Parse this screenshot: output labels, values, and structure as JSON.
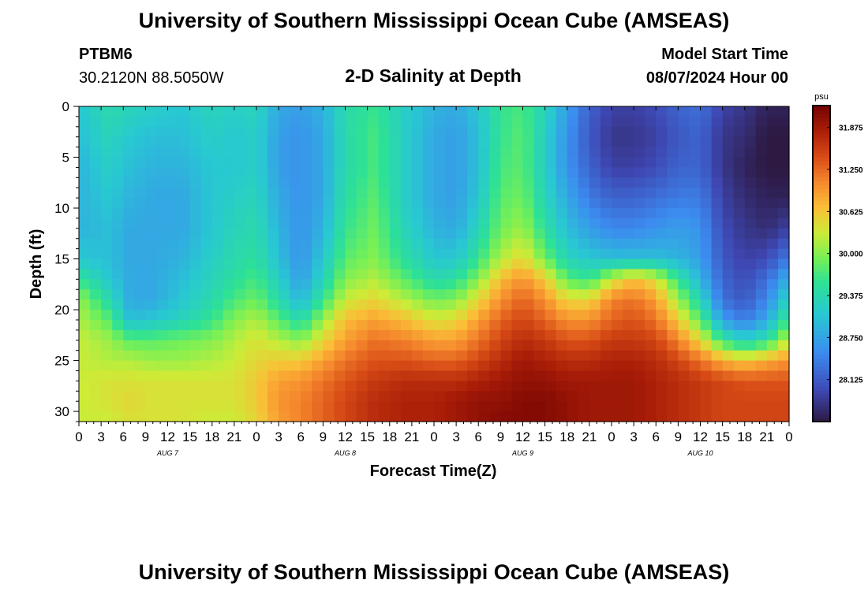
{
  "titles": {
    "main": "University of Southern Mississippi Ocean Cube (AMSEAS)",
    "footer": "University of Southern Mississippi Ocean Cube (AMSEAS)"
  },
  "station": {
    "id": "PTBM6",
    "location": "30.2120N  88.5050W"
  },
  "model": {
    "start_label": "Model Start Time",
    "start_value": "08/07/2024 Hour 00"
  },
  "chart_data": {
    "type": "heatmap",
    "title": "2-D Salinity at Depth",
    "xlabel": "Forecast Time(Z)",
    "ylabel": "Depth (ft)",
    "xlim": [
      0,
      96
    ],
    "ylim": [
      0,
      31
    ],
    "y_ticks": [
      0,
      5,
      10,
      15,
      20,
      25,
      30
    ],
    "y_tick_labels": [
      "0",
      "5",
      "10",
      "15",
      "20",
      "25",
      "30"
    ],
    "x_ticks": [
      0,
      3,
      6,
      9,
      12,
      15,
      18,
      21,
      24,
      27,
      30,
      33,
      36,
      39,
      42,
      45,
      48,
      51,
      54,
      57,
      60,
      63,
      66,
      69,
      72,
      75,
      78,
      81,
      84,
      87,
      90,
      93,
      96
    ],
    "x_tick_labels": [
      "0",
      "3",
      "6",
      "9",
      "12",
      "15",
      "18",
      "21",
      "0",
      "3",
      "6",
      "9",
      "12",
      "15",
      "18",
      "21",
      "0",
      "3",
      "6",
      "9",
      "12",
      "15",
      "18",
      "21",
      "0",
      "3",
      "6",
      "9",
      "12",
      "15",
      "18",
      "21",
      "0"
    ],
    "day_labels": [
      {
        "x": 12,
        "label": "AUG 7"
      },
      {
        "x": 36,
        "label": "AUG 8"
      },
      {
        "x": 60,
        "label": "AUG 9"
      },
      {
        "x": 84,
        "label": "AUG 10"
      }
    ],
    "colorbar": {
      "unit": "psu",
      "min": 27.5,
      "max": 32.2,
      "ticks": [
        28.125,
        28.75,
        29.375,
        30.0,
        30.625,
        31.25,
        31.875
      ],
      "tick_labels": [
        "28.125",
        "28.750",
        "29.375",
        "30.000",
        "30.625",
        "31.250",
        "31.875"
      ]
    },
    "depth_levels_ft": [
      0,
      3,
      6,
      9,
      12,
      15,
      17,
      19,
      21,
      23,
      25,
      27,
      29,
      31
    ],
    "time_hours": [
      0,
      4,
      7,
      10,
      14,
      18,
      21,
      24,
      27,
      30,
      33,
      36,
      40,
      44,
      48,
      51,
      54,
      57,
      60,
      63,
      66,
      69,
      72,
      75,
      78,
      81,
      84,
      87,
      90,
      93,
      96
    ],
    "salinity_psu": [
      [
        29.1,
        29.4,
        29.3,
        29.2,
        29.1,
        29.3,
        29.2,
        29.3,
        28.8,
        28.7,
        28.9,
        29.4,
        29.6,
        29.2,
        28.9,
        28.8,
        29.1,
        29.6,
        29.7,
        29.3,
        28.7,
        28.2,
        27.9,
        27.9,
        28.0,
        28.2,
        28.3,
        27.9,
        27.8,
        27.6,
        27.6
      ],
      [
        29.0,
        29.3,
        29.1,
        29.0,
        29.0,
        29.2,
        29.1,
        29.2,
        28.7,
        28.6,
        28.8,
        29.4,
        29.7,
        29.2,
        28.8,
        28.7,
        29.0,
        29.6,
        29.8,
        29.2,
        28.6,
        28.1,
        27.8,
        27.8,
        27.9,
        28.1,
        28.2,
        27.8,
        27.7,
        27.5,
        27.5
      ],
      [
        28.9,
        29.2,
        29.0,
        28.9,
        28.9,
        29.1,
        29.1,
        29.2,
        28.7,
        28.6,
        28.8,
        29.4,
        29.7,
        29.2,
        28.8,
        28.7,
        29.0,
        29.7,
        29.8,
        29.2,
        28.6,
        28.2,
        27.9,
        27.9,
        28.0,
        28.2,
        28.2,
        27.8,
        27.6,
        27.5,
        27.5
      ],
      [
        28.9,
        29.1,
        28.9,
        28.8,
        28.8,
        29.1,
        29.2,
        29.3,
        28.8,
        28.6,
        28.8,
        29.5,
        29.8,
        29.2,
        28.8,
        28.7,
        29.1,
        29.8,
        29.9,
        29.3,
        28.8,
        28.4,
        28.2,
        28.2,
        28.3,
        28.4,
        28.4,
        27.9,
        27.7,
        27.6,
        27.6
      ],
      [
        28.9,
        29.0,
        28.8,
        28.8,
        28.8,
        29.1,
        29.3,
        29.4,
        28.9,
        28.6,
        28.9,
        29.6,
        29.9,
        29.3,
        28.9,
        28.8,
        29.3,
        29.9,
        30.1,
        29.5,
        29.0,
        28.7,
        28.5,
        28.5,
        28.6,
        28.7,
        28.6,
        28.0,
        27.8,
        27.7,
        27.9
      ],
      [
        29.1,
        29.0,
        28.8,
        28.8,
        28.9,
        29.2,
        29.4,
        29.5,
        29.0,
        28.6,
        29.1,
        29.8,
        30.0,
        29.5,
        29.1,
        29.1,
        29.6,
        30.2,
        30.5,
        29.9,
        29.3,
        29.1,
        29.0,
        29.0,
        29.0,
        28.9,
        28.7,
        28.1,
        27.9,
        28.0,
        28.4
      ],
      [
        29.6,
        29.1,
        28.8,
        28.8,
        29.0,
        29.3,
        29.5,
        29.7,
        29.2,
        28.7,
        29.3,
        30.0,
        30.2,
        29.8,
        29.4,
        29.5,
        30.0,
        30.7,
        31.0,
        30.6,
        29.8,
        29.6,
        30.3,
        30.7,
        30.4,
        29.6,
        28.9,
        28.2,
        28.0,
        28.3,
        28.9
      ],
      [
        30.1,
        29.4,
        28.8,
        28.8,
        29.1,
        29.4,
        29.7,
        29.9,
        29.4,
        28.9,
        29.6,
        30.3,
        30.5,
        30.2,
        29.9,
        30.0,
        30.5,
        31.0,
        31.3,
        31.0,
        30.5,
        30.5,
        31.1,
        31.2,
        30.9,
        30.1,
        29.3,
        28.3,
        28.1,
        28.5,
        29.3
      ],
      [
        30.2,
        29.8,
        29.0,
        29.1,
        29.3,
        29.6,
        30.0,
        30.2,
        29.8,
        29.4,
        30.1,
        30.7,
        30.9,
        30.7,
        30.4,
        30.5,
        30.9,
        31.3,
        31.5,
        31.3,
        31.0,
        31.0,
        31.3,
        31.4,
        31.2,
        30.6,
        29.8,
        28.7,
        28.4,
        28.8,
        29.7
      ],
      [
        30.3,
        30.1,
        29.8,
        29.8,
        29.9,
        30.0,
        30.2,
        30.4,
        30.2,
        30.0,
        30.5,
        30.9,
        31.2,
        31.1,
        30.9,
        30.9,
        31.2,
        31.5,
        31.7,
        31.6,
        31.4,
        31.4,
        31.6,
        31.6,
        31.5,
        31.1,
        30.5,
        29.6,
        29.2,
        29.5,
        30.3
      ],
      [
        30.3,
        30.2,
        30.2,
        30.1,
        30.1,
        30.2,
        30.3,
        30.5,
        30.6,
        30.6,
        30.9,
        31.2,
        31.4,
        31.4,
        31.3,
        31.3,
        31.5,
        31.7,
        31.9,
        31.8,
        31.7,
        31.7,
        31.8,
        31.8,
        31.7,
        31.5,
        31.2,
        30.8,
        30.6,
        30.8,
        31.0
      ],
      [
        30.3,
        30.4,
        30.4,
        30.4,
        30.4,
        30.4,
        30.4,
        30.6,
        30.9,
        31.0,
        31.2,
        31.4,
        31.6,
        31.7,
        31.7,
        31.7,
        31.8,
        31.9,
        32.0,
        32.0,
        31.9,
        31.9,
        31.9,
        31.9,
        31.8,
        31.7,
        31.6,
        31.5,
        31.4,
        31.4,
        31.4
      ],
      [
        30.3,
        30.4,
        30.5,
        30.4,
        30.4,
        30.4,
        30.4,
        30.6,
        31.0,
        31.1,
        31.3,
        31.5,
        31.7,
        31.8,
        31.8,
        31.9,
        32.0,
        32.0,
        32.1,
        32.1,
        32.0,
        31.9,
        31.9,
        31.9,
        31.8,
        31.7,
        31.6,
        31.5,
        31.5,
        31.5,
        31.5
      ],
      [
        30.3,
        30.3,
        30.4,
        30.4,
        30.4,
        30.3,
        30.3,
        30.5,
        30.9,
        31.1,
        31.3,
        31.5,
        31.7,
        31.8,
        31.8,
        31.9,
        32.0,
        32.1,
        32.1,
        32.1,
        32.0,
        31.9,
        31.9,
        31.9,
        31.8,
        31.7,
        31.6,
        31.5,
        31.5,
        31.5,
        31.5
      ]
    ]
  }
}
